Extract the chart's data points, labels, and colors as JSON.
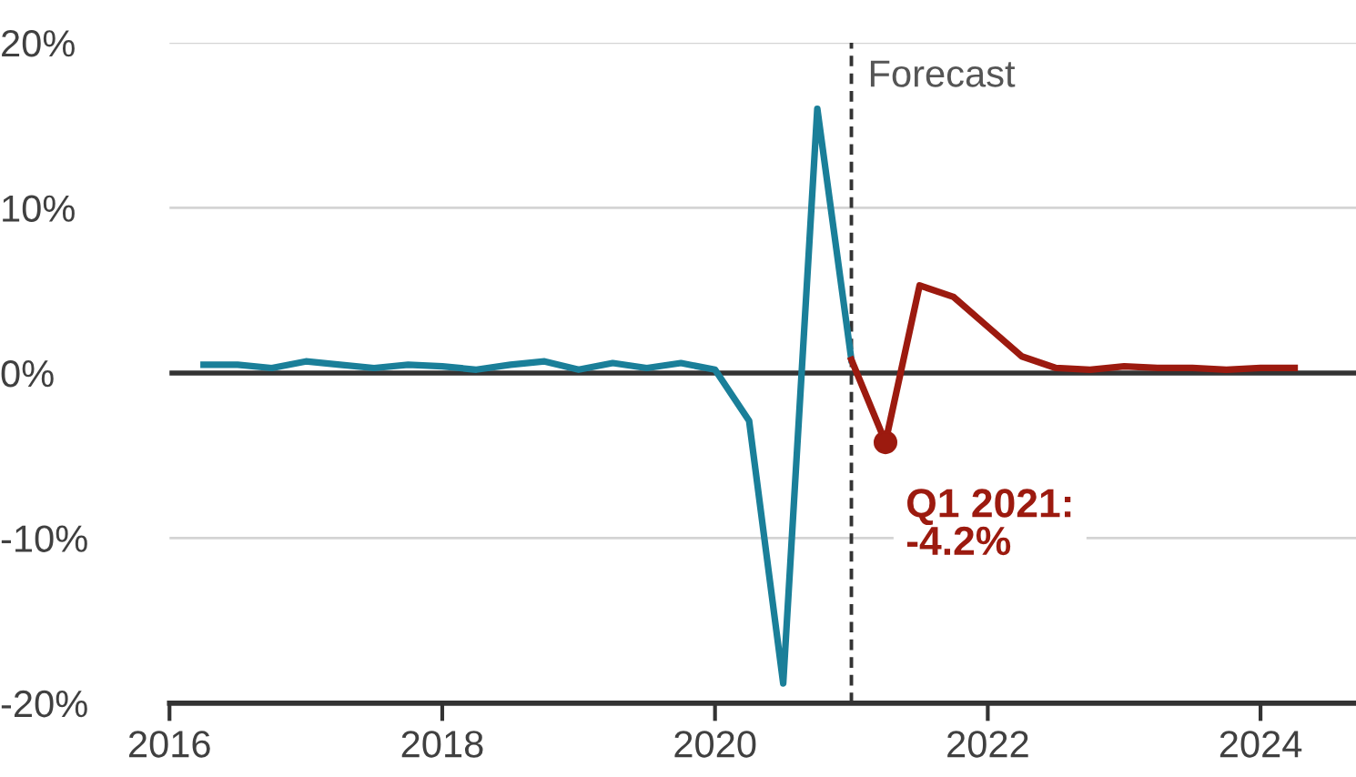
{
  "chart_data": {
    "type": "line",
    "series": [
      {
        "color": "#1a7f99",
        "x": [
          2016.25,
          2016.5,
          2016.75,
          2017.0,
          2017.25,
          2017.5,
          2017.75,
          2018.0,
          2018.25,
          2018.5,
          2018.75,
          2019.0,
          2019.25,
          2019.5,
          2019.75,
          2020.0,
          2020.25,
          2020.5,
          2020.75,
          2021.0
        ],
        "values": [
          0.5,
          0.5,
          0.3,
          0.7,
          0.5,
          0.3,
          0.5,
          0.4,
          0.2,
          0.5,
          0.7,
          0.2,
          0.6,
          0.3,
          0.6,
          0.2,
          -2.9,
          -18.8,
          16.0,
          0.8
        ]
      },
      {
        "color": "#9c1a0f",
        "x": [
          2021.0,
          2021.25,
          2021.5,
          2021.75,
          2022.0,
          2022.25,
          2022.5,
          2022.75,
          2023.0,
          2023.25,
          2023.5,
          2023.75,
          2024.0,
          2024.25
        ],
        "values": [
          0.8,
          -4.2,
          5.3,
          4.6,
          2.8,
          1.0,
          0.3,
          0.2,
          0.4,
          0.3,
          0.3,
          0.2,
          0.3,
          0.3
        ]
      },
      {
        "type": "scatter",
        "color": "#9c1a0f",
        "x": [
          2021.25
        ],
        "values": [
          -4.2
        ],
        "marker": "circle"
      }
    ],
    "xlim": [
      2016,
      2024.7
    ],
    "xticks": [
      2016,
      2018,
      2020,
      2022,
      2024
    ],
    "ylim": [
      -20,
      20
    ],
    "yticks": [
      {
        "value": -20,
        "label": "-20%"
      },
      {
        "value": -10,
        "label": "-10%"
      },
      {
        "value": 0,
        "label": "0%"
      },
      {
        "value": 10,
        "label": "10%"
      },
      {
        "value": 20,
        "label": "20%"
      }
    ],
    "grid": "y",
    "ref_lines": [
      {
        "axis": "y",
        "value": 0,
        "color": "#333333",
        "line_style": "solid"
      },
      {
        "axis": "x",
        "value": 2021,
        "label": "Forecast",
        "color": "#333333",
        "line_style": "dashed"
      }
    ],
    "annotations": [
      {
        "text": "Q1 2021:\n-4.2%",
        "x": 2021.25,
        "y": -4.2
      }
    ]
  }
}
